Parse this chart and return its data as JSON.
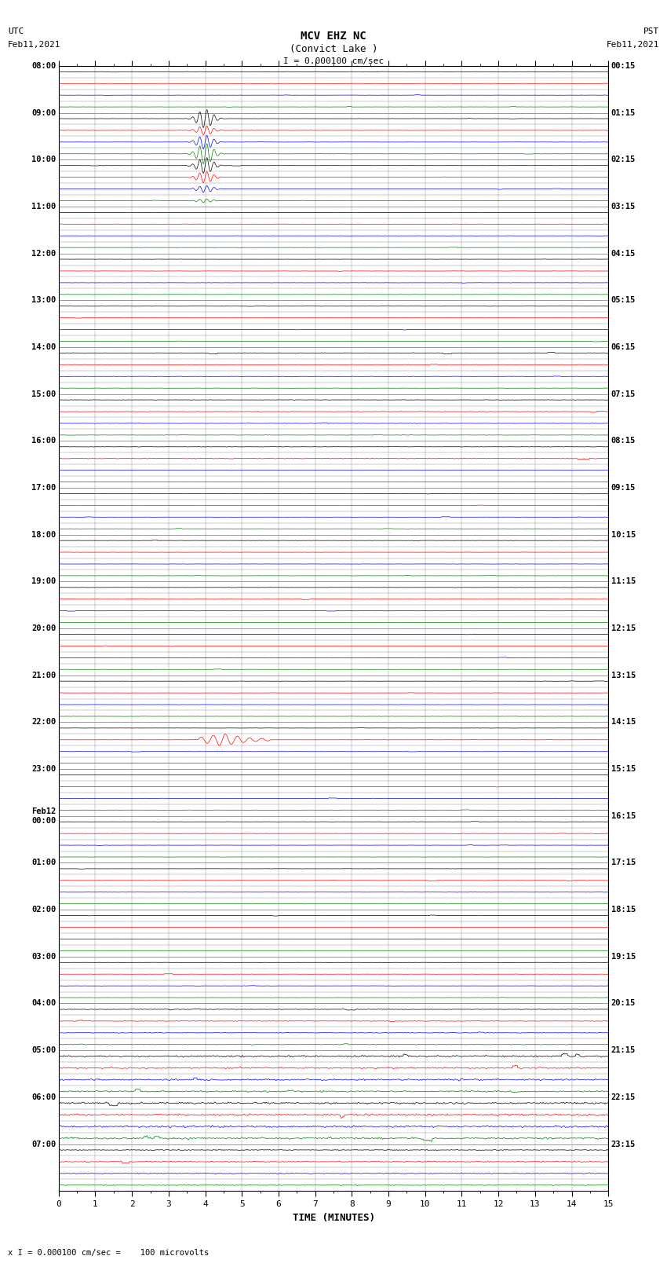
{
  "title_line1": "MCV EHZ NC",
  "title_line2": "(Convict Lake )",
  "title_line3": "I = 0.000100 cm/sec",
  "left_header_line1": "UTC",
  "left_header_line2": "Feb11,2021",
  "right_header_line1": "PST",
  "right_header_line2": "Feb11,2021",
  "xlabel": "TIME (MINUTES)",
  "footer": "x I = 0.000100 cm/sec =    100 microvolts",
  "utc_times": [
    "08:00",
    "09:00",
    "10:00",
    "11:00",
    "12:00",
    "13:00",
    "14:00",
    "15:00",
    "16:00",
    "17:00",
    "18:00",
    "19:00",
    "20:00",
    "21:00",
    "22:00",
    "23:00",
    "Feb12\n00:00",
    "01:00",
    "02:00",
    "03:00",
    "04:00",
    "05:00",
    "06:00",
    "07:00"
  ],
  "pst_times": [
    "00:15",
    "01:15",
    "02:15",
    "03:15",
    "04:15",
    "05:15",
    "06:15",
    "07:15",
    "08:15",
    "09:15",
    "10:15",
    "11:15",
    "12:15",
    "13:15",
    "14:15",
    "15:15",
    "16:15",
    "17:15",
    "18:15",
    "19:15",
    "20:15",
    "21:15",
    "22:15",
    "23:15"
  ],
  "num_hours": 24,
  "traces_per_hour": 4,
  "minutes_per_row": 15,
  "bg_color": "#ffffff",
  "grid_color": "#888888",
  "line_colors": [
    "#000000",
    "#ff0000",
    "#0000ff",
    "#008000"
  ],
  "noise_seed": 42,
  "row_amplitudes": [
    0.006,
    0.006,
    0.006,
    0.006,
    0.006,
    0.008,
    0.006,
    0.006,
    0.006,
    0.006,
    0.006,
    0.008,
    0.006,
    0.008,
    0.006,
    0.006,
    0.006,
    0.006,
    0.006,
    0.006,
    0.006,
    0.006,
    0.006,
    0.006,
    0.015,
    0.01,
    0.01,
    0.006,
    0.01,
    0.01,
    0.01,
    0.01,
    0.01,
    0.015,
    0.008,
    0.008,
    0.006,
    0.006,
    0.006,
    0.006,
    0.006,
    0.006,
    0.006,
    0.006,
    0.006,
    0.008,
    0.006,
    0.006,
    0.006,
    0.006,
    0.006,
    0.006,
    0.006,
    0.006,
    0.006,
    0.006,
    0.006,
    0.006,
    0.006,
    0.006,
    0.006,
    0.006,
    0.006,
    0.006,
    0.006,
    0.008,
    0.006,
    0.006,
    0.006,
    0.006,
    0.006,
    0.006,
    0.008,
    0.008,
    0.008,
    0.006,
    0.006,
    0.006,
    0.006,
    0.006,
    0.006,
    0.006,
    0.006,
    0.006,
    0.01,
    0.01,
    0.01,
    0.01,
    0.012,
    0.012,
    0.012,
    0.012,
    0.006,
    0.006,
    0.006,
    0.006
  ]
}
